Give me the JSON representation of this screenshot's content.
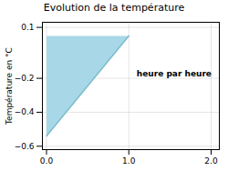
{
  "chart_data": {
    "type": "area",
    "title": "Evolution de la température",
    "ylabel": "Température en °C",
    "xlim": [
      -0.05,
      2.1
    ],
    "ylim": [
      -0.62,
      0.13
    ],
    "xticks": [
      0,
      1,
      2
    ],
    "yticks": [
      0.1,
      -0.2,
      -0.4,
      -0.6
    ],
    "grid": true,
    "series": [
      {
        "type": "area",
        "color": "#a8d8e8",
        "polygon": [
          [
            0,
            0.05
          ],
          [
            1,
            0.05
          ],
          [
            0,
            -0.54
          ]
        ]
      },
      {
        "type": "line",
        "color": "#7bbccc",
        "x": [
          0,
          1
        ],
        "values": [
          -0.54,
          0.05
        ]
      }
    ],
    "annotations": [
      {
        "text": "heure par heure",
        "x": 1.55,
        "y": -0.175
      }
    ]
  }
}
